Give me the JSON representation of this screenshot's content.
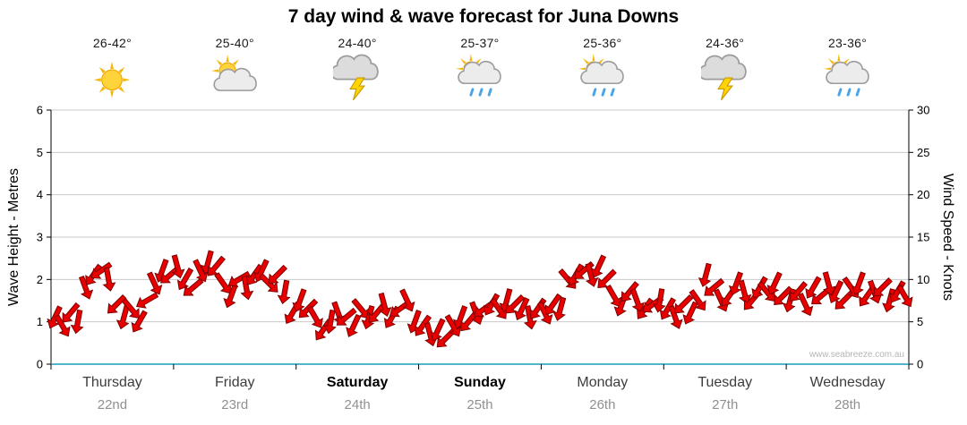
{
  "title": "7 day wind & wave forecast for Juna Downs",
  "watermark": "www.seabreeze.com.au",
  "axes": {
    "left_label": "Wave Height - Metres",
    "right_label": "Wind Speed - Knots",
    "left_ticks": [
      0,
      1,
      2,
      3,
      4,
      5,
      6
    ],
    "right_ticks": [
      0,
      5,
      10,
      15,
      20,
      25,
      30
    ]
  },
  "days": [
    {
      "name": "Thursday",
      "date": "22nd",
      "temp": "26-42°",
      "icon": "sunny",
      "weekend": false
    },
    {
      "name": "Friday",
      "date": "23rd",
      "temp": "25-40°",
      "icon": "partly-cloudy",
      "weekend": false
    },
    {
      "name": "Saturday",
      "date": "24th",
      "temp": "24-40°",
      "icon": "thunderstorm",
      "weekend": true
    },
    {
      "name": "Sunday",
      "date": "25th",
      "temp": "25-37°",
      "icon": "sun-showers",
      "weekend": true
    },
    {
      "name": "Monday",
      "date": "26th",
      "temp": "25-36°",
      "icon": "sun-showers",
      "weekend": false
    },
    {
      "name": "Tuesday",
      "date": "27th",
      "temp": "24-36°",
      "icon": "thunderstorm",
      "weekend": false
    },
    {
      "name": "Wednesday",
      "date": "28th",
      "temp": "23-36°",
      "icon": "sun-showers",
      "weekend": false
    }
  ],
  "chart_data": {
    "type": "wind-direction-arrows",
    "title": "7 day wind & wave forecast for Juna Downs",
    "xlabel": "",
    "ylabel_left": "Wave Height - Metres",
    "ylabel_right": "Wind Speed - Knots",
    "ylim_left": [
      0,
      6
    ],
    "ylim_right": [
      0,
      30
    ],
    "grid": "horizontal",
    "x_categories": [
      "Thursday 22nd",
      "Friday 23rd",
      "Saturday 24th",
      "Sunday 25th",
      "Monday 26th",
      "Tuesday 27th",
      "Wednesday 28th"
    ],
    "series_unit": "knots",
    "samples_per_day": 16,
    "knots_series": [
      [
        5.5,
        4.5,
        6,
        5,
        9,
        10.5,
        11,
        10,
        7,
        5.5,
        6.5,
        5,
        7.5,
        9.5,
        11,
        10.5
      ],
      [
        11.5,
        10,
        9,
        11,
        12,
        11.5,
        9.5,
        8,
        10,
        9,
        10.5,
        11,
        9.5,
        10.5,
        8.5,
        6
      ],
      [
        7.5,
        6.5,
        5.5,
        4,
        5,
        6,
        5.5,
        4.5,
        6.5,
        5.5,
        6,
        7,
        5.5,
        6.5,
        7.5,
        5
      ],
      [
        4.5,
        3.5,
        4,
        3,
        4.5,
        5.5,
        5,
        6,
        6.5,
        7,
        6.5,
        7.5,
        7,
        6.5,
        5.5,
        6.5
      ],
      [
        6,
        7,
        6.5,
        10,
        10.5,
        11,
        10.5,
        11.5,
        10,
        8,
        7,
        8.5,
        7.5,
        6.5,
        7,
        7.5
      ],
      [
        6.5,
        5.5,
        7,
        6,
        7.5,
        10.5,
        9,
        7.5,
        8,
        9.5,
        8.5,
        7.5,
        9,
        8.5,
        9.5,
        8
      ],
      [
        7.5,
        8.5,
        7,
        9,
        8,
        9.5,
        8.5,
        7.5,
        9,
        9.5,
        8,
        8.5,
        9,
        7.5,
        8.5,
        8
      ]
    ],
    "angle_series": [
      [
        25,
        -30,
        40,
        10,
        -20,
        35,
        55,
        -10,
        45,
        15,
        -40,
        30,
        60,
        -25,
        20,
        50
      ],
      [
        -15,
        30,
        50,
        -25,
        15,
        40,
        -35,
        20,
        60,
        -10,
        35,
        25,
        -45,
        45,
        10,
        30
      ],
      [
        20,
        45,
        -30,
        35,
        10,
        -20,
        50,
        25,
        -40,
        15,
        40,
        -15,
        30,
        55,
        -25,
        20
      ],
      [
        35,
        -15,
        25,
        45,
        -30,
        20,
        40,
        -20,
        55,
        30,
        -35,
        15,
        45,
        25,
        -10,
        35
      ],
      [
        -25,
        35,
        15,
        -40,
        30,
        50,
        -15,
        25,
        45,
        -30,
        20,
        40,
        -20,
        35,
        55,
        10
      ],
      [
        30,
        -20,
        45,
        25,
        -35,
        15,
        50,
        -25,
        35,
        20,
        -15,
        40,
        30,
        -40,
        25,
        45
      ],
      [
        15,
        40,
        -25,
        30,
        50,
        -15,
        25,
        45,
        -35,
        20,
        35,
        -20,
        45,
        15,
        30,
        -30
      ]
    ],
    "colors": {
      "arrow_fill": "#e80000",
      "arrow_outline": "#7f0000",
      "grid": "#c9c9c9",
      "axis": "#000000",
      "zero_line": "#52b5cc",
      "sun": "#ffd43a",
      "cloud": "#ececec",
      "bolt": "#ffd400",
      "rain": "#4aa4e6"
    }
  }
}
